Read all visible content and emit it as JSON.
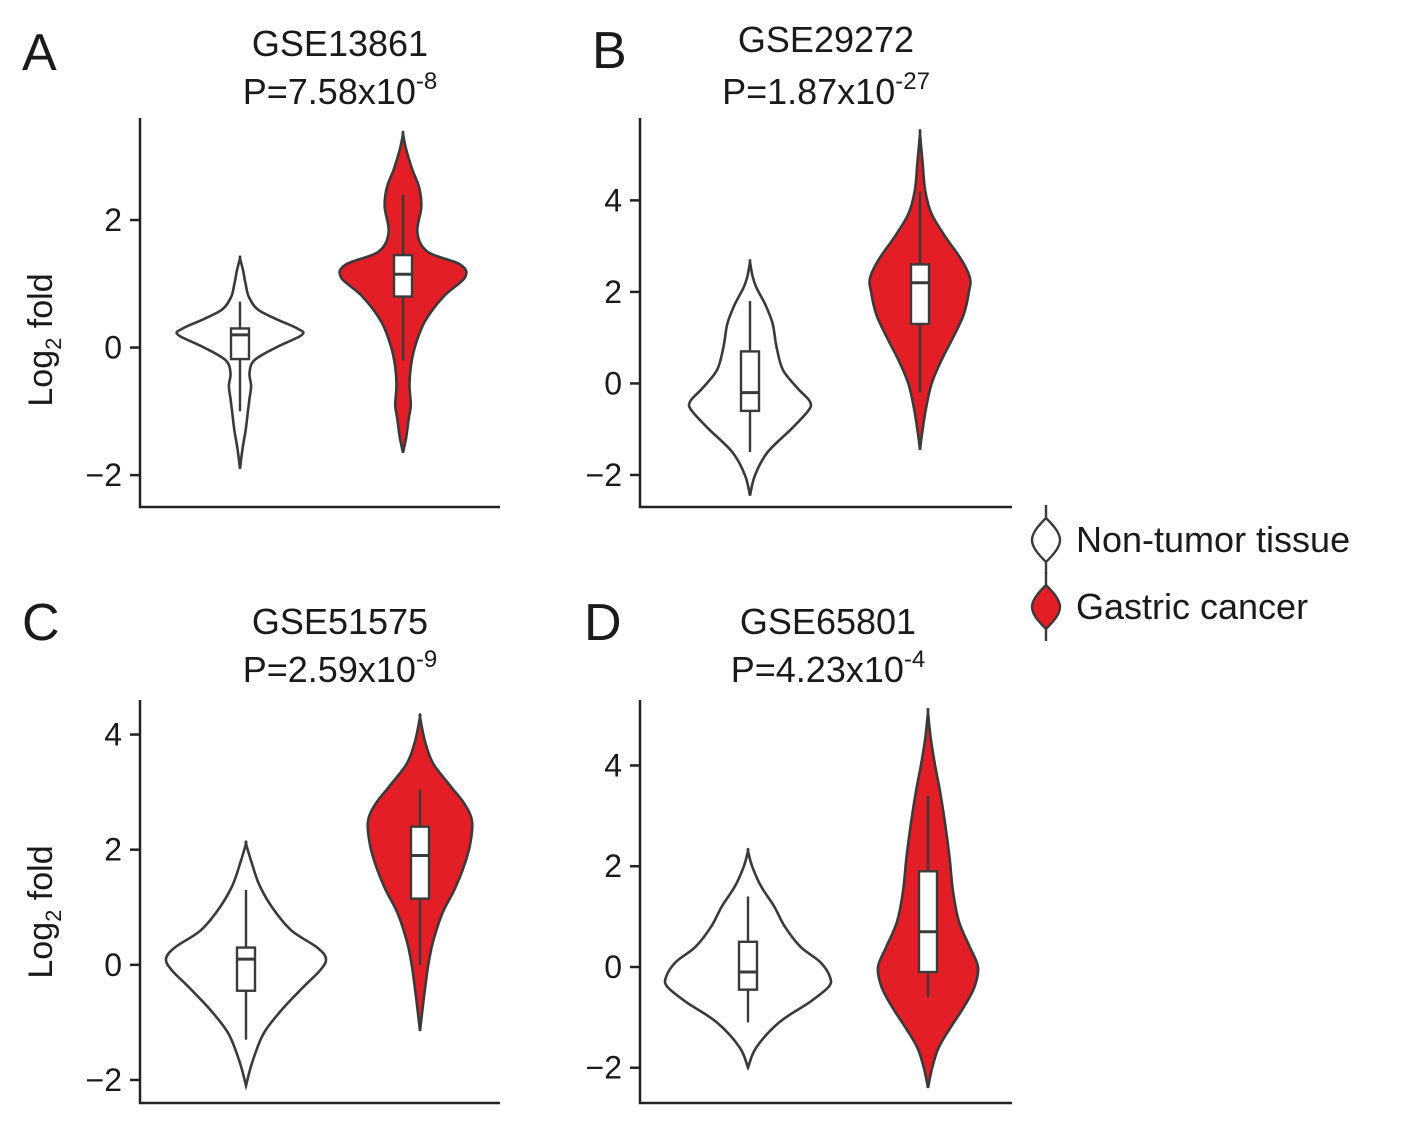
{
  "colors": {
    "normal_fill": "#ffffff",
    "cancer_fill": "#e41e26",
    "outline": "#3a3a3a"
  },
  "legend": {
    "placement": "right",
    "items": [
      {
        "label": "Non-tumor tissue",
        "color": "#ffffff",
        "symbol": "violin-icon"
      },
      {
        "label": "Gastric cancer",
        "color": "#e41e26",
        "symbol": "violin-icon"
      }
    ]
  },
  "chart_data": [
    {
      "type": "violin",
      "panel_label": "A",
      "title": "GSE13861",
      "p_value": {
        "prefix": "P=7.58x10",
        "exponent": "-8"
      },
      "ylabel": {
        "main": "Log",
        "sub": "2",
        "rest": " fold"
      },
      "ylim": [
        -2.5,
        3.6
      ],
      "yticks": [
        -2,
        0,
        2
      ],
      "ytick_labels": [
        "−2",
        "0",
        "2"
      ],
      "grid": false,
      "groups": [
        {
          "name": "Non-tumor tissue",
          "color": "#ffffff",
          "box": {
            "whislo": -1.0,
            "q1": -0.18,
            "median": 0.2,
            "q3": 0.3,
            "whishi": 0.72
          },
          "density": [
            [
              -1.9,
              0
            ],
            [
              -1.6,
              0.03
            ],
            [
              -1.3,
              0.07
            ],
            [
              -1.0,
              0.1
            ],
            [
              -0.8,
              0.12
            ],
            [
              -0.6,
              0.14
            ],
            [
              -0.4,
              0.12
            ],
            [
              -0.2,
              0.18
            ],
            [
              0.0,
              0.45
            ],
            [
              0.2,
              0.78
            ],
            [
              0.3,
              0.72
            ],
            [
              0.45,
              0.45
            ],
            [
              0.6,
              0.22
            ],
            [
              0.8,
              0.11
            ],
            [
              1.0,
              0.07
            ],
            [
              1.2,
              0.04
            ],
            [
              1.4,
              0
            ]
          ]
        },
        {
          "name": "Gastric cancer",
          "color": "#e41e26",
          "box": {
            "whislo": -0.2,
            "q1": 0.8,
            "median": 1.15,
            "q3": 1.45,
            "whishi": 2.4
          },
          "density": [
            [
              -1.65,
              0
            ],
            [
              -1.4,
              0.05
            ],
            [
              -1.1,
              0.09
            ],
            [
              -0.9,
              0.12
            ],
            [
              -0.6,
              0.1
            ],
            [
              -0.3,
              0.12
            ],
            [
              0.0,
              0.18
            ],
            [
              0.4,
              0.33
            ],
            [
              0.8,
              0.62
            ],
            [
              1.1,
              0.95
            ],
            [
              1.3,
              0.88
            ],
            [
              1.5,
              0.38
            ],
            [
              1.8,
              0.22
            ],
            [
              2.2,
              0.28
            ],
            [
              2.5,
              0.25
            ],
            [
              2.8,
              0.14
            ],
            [
              3.1,
              0.05
            ],
            [
              3.35,
              0
            ]
          ]
        }
      ]
    },
    {
      "type": "violin",
      "panel_label": "B",
      "title": "GSE29272",
      "p_value": {
        "prefix": "P=1.87x10",
        "exponent": "-27"
      },
      "ylabel": null,
      "ylim": [
        -2.7,
        5.8
      ],
      "yticks": [
        -2,
        0,
        2,
        4
      ],
      "ytick_labels": [
        "−2",
        "0",
        "2",
        "4"
      ],
      "grid": false,
      "groups": [
        {
          "name": "Non-tumor tissue",
          "color": "#ffffff",
          "box": {
            "whislo": -1.5,
            "q1": -0.6,
            "median": -0.2,
            "q3": 0.7,
            "whishi": 1.8
          },
          "density": [
            [
              -2.45,
              0
            ],
            [
              -2.0,
              0.08
            ],
            [
              -1.5,
              0.28
            ],
            [
              -1.0,
              0.65
            ],
            [
              -0.6,
              0.92
            ],
            [
              -0.4,
              0.95
            ],
            [
              -0.1,
              0.75
            ],
            [
              0.3,
              0.52
            ],
            [
              0.8,
              0.42
            ],
            [
              1.3,
              0.36
            ],
            [
              1.7,
              0.25
            ],
            [
              2.1,
              0.1
            ],
            [
              2.35,
              0.04
            ],
            [
              2.65,
              0
            ]
          ]
        },
        {
          "name": "Gastric cancer",
          "color": "#e41e26",
          "box": {
            "whislo": -0.2,
            "q1": 1.3,
            "median": 2.2,
            "q3": 2.6,
            "whishi": 4.2
          },
          "density": [
            [
              -1.45,
              0
            ],
            [
              -1.0,
              0.05
            ],
            [
              -0.5,
              0.12
            ],
            [
              0.0,
              0.22
            ],
            [
              0.5,
              0.4
            ],
            [
              1.0,
              0.62
            ],
            [
              1.5,
              0.82
            ],
            [
              2.0,
              0.92
            ],
            [
              2.3,
              0.94
            ],
            [
              2.7,
              0.78
            ],
            [
              3.2,
              0.48
            ],
            [
              3.7,
              0.22
            ],
            [
              4.2,
              0.1
            ],
            [
              4.8,
              0.05
            ],
            [
              5.45,
              0
            ]
          ]
        }
      ]
    },
    {
      "type": "violin",
      "panel_label": "C",
      "title": "GSE51575",
      "p_value": {
        "prefix": "P=2.59x10",
        "exponent": "-9"
      },
      "ylabel": {
        "main": "Log",
        "sub": "2",
        "rest": " fold"
      },
      "ylim": [
        -2.4,
        4.6
      ],
      "yticks": [
        -2,
        0,
        2,
        4
      ],
      "ytick_labels": [
        "−2",
        "0",
        "2",
        "4"
      ],
      "grid": false,
      "groups": [
        {
          "name": "Non-tumor tissue",
          "color": "#ffffff",
          "box": {
            "whislo": -1.3,
            "q1": -0.45,
            "median": 0.1,
            "q3": 0.3,
            "whishi": 1.3
          },
          "density": [
            [
              -2.1,
              0
            ],
            [
              -1.7,
              0.07
            ],
            [
              -1.2,
              0.2
            ],
            [
              -0.8,
              0.4
            ],
            [
              -0.4,
              0.65
            ],
            [
              -0.1,
              0.85
            ],
            [
              0.1,
              0.92
            ],
            [
              0.3,
              0.82
            ],
            [
              0.6,
              0.52
            ],
            [
              1.0,
              0.3
            ],
            [
              1.4,
              0.15
            ],
            [
              1.8,
              0.06
            ],
            [
              2.1,
              0
            ]
          ]
        },
        {
          "name": "Gastric cancer",
          "color": "#e41e26",
          "box": {
            "whislo": 0.0,
            "q1": 1.15,
            "median": 1.9,
            "q3": 2.4,
            "whishi": 3.05
          },
          "density": [
            [
              -1.15,
              0
            ],
            [
              -0.7,
              0.05
            ],
            [
              -0.3,
              0.1
            ],
            [
              0.0,
              0.14
            ],
            [
              0.4,
              0.22
            ],
            [
              0.9,
              0.38
            ],
            [
              1.3,
              0.58
            ],
            [
              1.7,
              0.74
            ],
            [
              2.1,
              0.85
            ],
            [
              2.5,
              0.88
            ],
            [
              2.8,
              0.75
            ],
            [
              3.1,
              0.52
            ],
            [
              3.5,
              0.22
            ],
            [
              3.9,
              0.08
            ],
            [
              4.3,
              0
            ]
          ]
        }
      ]
    },
    {
      "type": "violin",
      "panel_label": "D",
      "title": "GSE65801",
      "p_value": {
        "prefix": "P=4.23x10",
        "exponent": "-4"
      },
      "ylabel": null,
      "ylim": [
        -2.7,
        5.3
      ],
      "yticks": [
        -2,
        0,
        2,
        4
      ],
      "ytick_labels": [
        "−2",
        "0",
        "2",
        "4"
      ],
      "grid": false,
      "groups": [
        {
          "name": "Non-tumor tissue",
          "color": "#ffffff",
          "box": {
            "whislo": -1.1,
            "q1": -0.45,
            "median": -0.1,
            "q3": 0.5,
            "whishi": 1.4
          },
          "density": [
            [
              -2.0,
              0
            ],
            [
              -1.6,
              0.1
            ],
            [
              -1.1,
              0.38
            ],
            [
              -0.7,
              0.75
            ],
            [
              -0.4,
              0.98
            ],
            [
              -0.2,
              1.0
            ],
            [
              0.1,
              0.88
            ],
            [
              0.4,
              0.64
            ],
            [
              0.8,
              0.45
            ],
            [
              1.2,
              0.32
            ],
            [
              1.6,
              0.16
            ],
            [
              2.0,
              0.05
            ],
            [
              2.3,
              0
            ]
          ]
        },
        {
          "name": "Gastric cancer",
          "color": "#e41e26",
          "box": {
            "whislo": -0.6,
            "q1": -0.1,
            "median": 0.7,
            "q3": 1.9,
            "whishi": 3.4
          },
          "density": [
            [
              -2.4,
              0
            ],
            [
              -2.0,
              0.07
            ],
            [
              -1.6,
              0.18
            ],
            [
              -1.2,
              0.38
            ],
            [
              -0.8,
              0.6
            ],
            [
              -0.4,
              0.78
            ],
            [
              0.0,
              0.84
            ],
            [
              0.4,
              0.7
            ],
            [
              0.9,
              0.52
            ],
            [
              1.5,
              0.42
            ],
            [
              2.2,
              0.36
            ],
            [
              2.9,
              0.28
            ],
            [
              3.5,
              0.2
            ],
            [
              4.0,
              0.12
            ],
            [
              4.5,
              0.05
            ],
            [
              5.05,
              0
            ]
          ]
        }
      ]
    }
  ]
}
